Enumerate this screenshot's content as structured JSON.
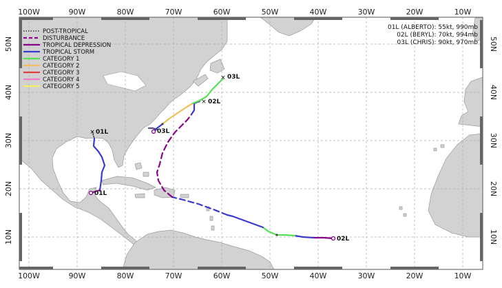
{
  "map": {
    "lon_labels": [
      "100W",
      "90W",
      "80W",
      "70W",
      "60W",
      "50W",
      "40W",
      "30W",
      "20W",
      "10W"
    ],
    "lat_labels": [
      "50N",
      "40N",
      "30N",
      "20N",
      "10N"
    ],
    "colors": {
      "ocean": "#ffffff",
      "land": "#d2d2d2",
      "coast": "#9a9a9a",
      "grid": "#aaaaaa"
    }
  },
  "legend": {
    "items": [
      {
        "label": "POST-TROPICAL",
        "color": "#ffffff",
        "style": "dotted-border"
      },
      {
        "label": "DISTURBANCE",
        "color": "#8b008b",
        "style": "dashed"
      },
      {
        "label": "TROPICAL DEPRESSION",
        "color": "#8b008b",
        "style": "solid"
      },
      {
        "label": "TROPICAL STORM",
        "color": "#3a3ad0",
        "style": "solid"
      },
      {
        "label": "CATEGORY 1",
        "color": "#55e055",
        "style": "solid"
      },
      {
        "label": "CATEGORY 2",
        "color": "#f0c060",
        "style": "solid"
      },
      {
        "label": "CATEGORY 3",
        "color": "#e04040",
        "style": "solid"
      },
      {
        "label": "CATEGORY 4",
        "color": "#f07cc8",
        "style": "solid"
      },
      {
        "label": "CATEGORY 5",
        "color": "#f5f060",
        "style": "solid"
      }
    ]
  },
  "info": [
    "01L (ALBERTO): 55kt, 990mb",
    "02L (BERYL): 70kt, 994mb",
    "03L (CHRIS): 90kt, 970mb"
  ],
  "storm_labels": {
    "alberto_end": "01L",
    "alberto_start": "01L",
    "beryl_start": "02L",
    "beryl_end": "02L",
    "chris_start": "03L",
    "chris_end": "03L"
  }
}
